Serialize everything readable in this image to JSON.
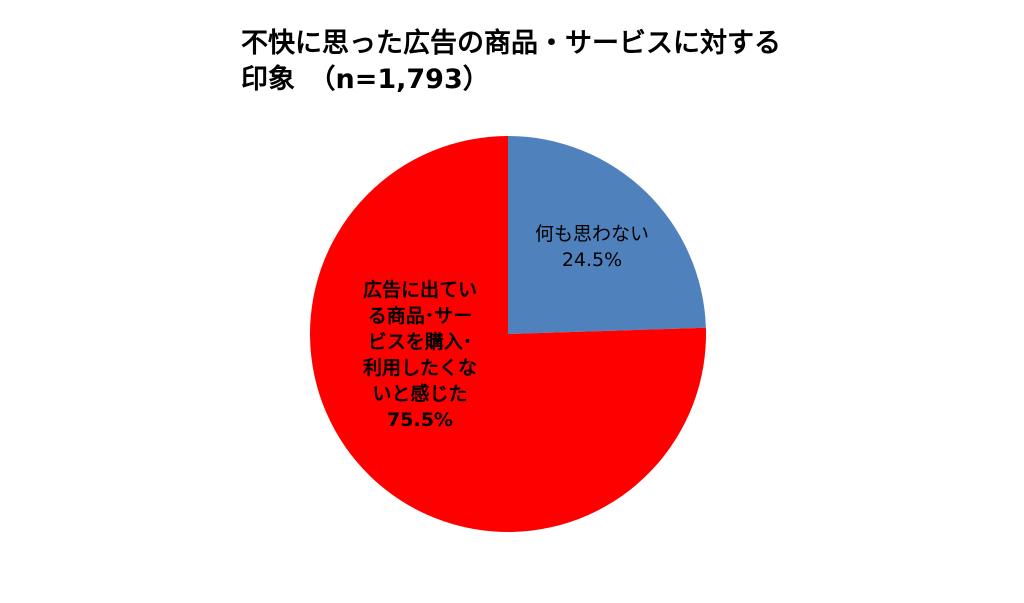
{
  "chart_data": {
    "type": "pie",
    "title_lines": [
      "不快に思った広告の商品・サービスに対する",
      "印象　（n=1,793）"
    ],
    "slices": [
      {
        "label_lines": [
          "何も思わない"
        ],
        "value": 24.5,
        "value_label": "24.5%",
        "color": "#4f81bd"
      },
      {
        "label_lines": [
          "広告に出てい",
          "る商品･サー",
          "ビスを購入･",
          "利用したくな",
          "いと感じた"
        ],
        "value": 75.5,
        "value_label": "75.5%",
        "color": "#ff0000"
      }
    ],
    "start_angle_deg": 0,
    "direction": "clockwise"
  }
}
